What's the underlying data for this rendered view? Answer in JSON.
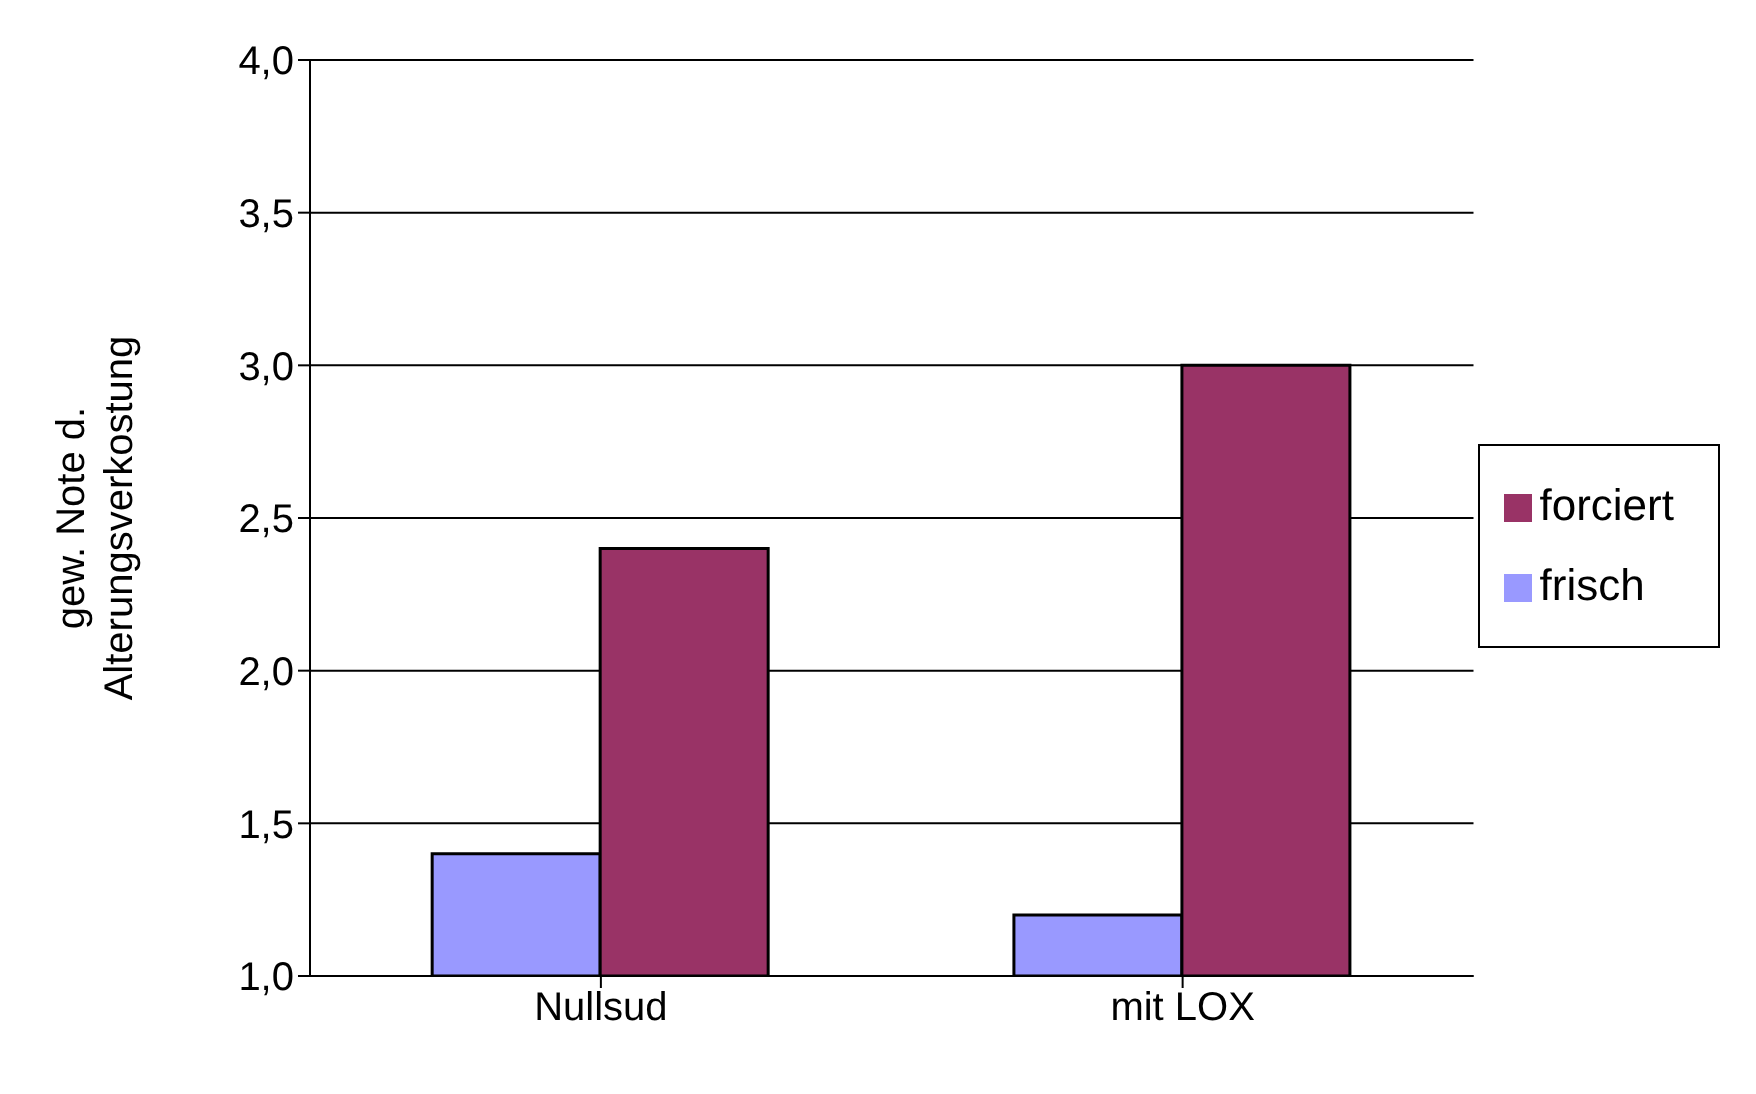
{
  "chart_data": {
    "type": "bar",
    "ylabel": "gew. Note d. Alterungsverkostung",
    "categories": [
      "Nullsud",
      "mit LOX"
    ],
    "series": [
      {
        "name": "frisch",
        "color": "#9999ff",
        "values": [
          1.4,
          1.2
        ]
      },
      {
        "name": "forciert",
        "color": "#993366",
        "values": [
          2.4,
          3.0
        ]
      }
    ],
    "ylim": [
      1,
      4
    ],
    "yticks": [
      {
        "value": 1,
        "label": "1,0"
      },
      {
        "value": 1.5,
        "label": "1,5"
      },
      {
        "value": 2,
        "label": "2,0"
      },
      {
        "value": 2.5,
        "label": "2,5"
      },
      {
        "value": 3,
        "label": "3,0"
      },
      {
        "value": 3.5,
        "label": "3,5"
      },
      {
        "value": 4,
        "label": "4,0"
      }
    ],
    "grid": "y",
    "legend": "right"
  }
}
